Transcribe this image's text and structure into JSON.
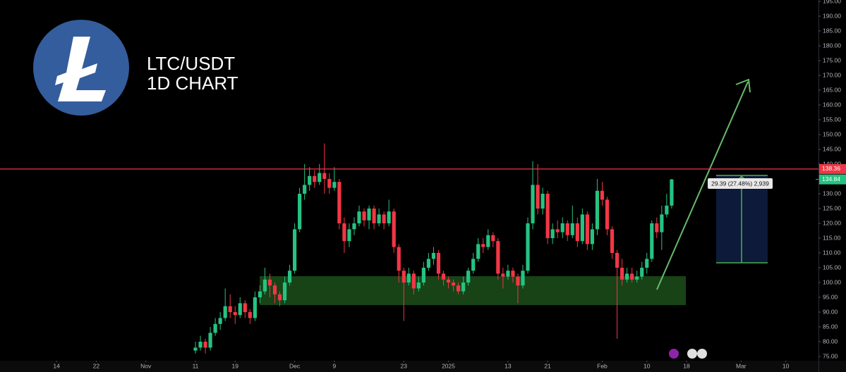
{
  "chart_data": {
    "type": "candlestick",
    "title": "LTC/USDT",
    "subtitle": "1D CHART",
    "x": [
      28,
      29,
      30,
      31,
      32,
      33,
      34,
      35,
      36,
      37,
      38,
      39,
      40,
      41,
      42,
      43,
      44,
      45,
      46,
      47,
      48,
      49,
      50,
      51,
      52,
      53,
      54,
      55,
      56,
      57,
      58,
      59,
      60,
      61,
      62,
      63,
      64,
      65,
      66,
      67,
      68,
      69,
      70,
      71,
      72,
      73,
      74,
      75,
      76,
      77,
      78,
      79,
      80,
      81,
      82,
      83,
      84,
      85,
      86,
      87,
      88,
      89,
      90,
      91,
      92,
      93,
      94,
      95,
      96,
      97,
      98,
      99,
      100,
      101,
      102,
      103,
      104,
      105,
      106,
      107,
      108,
      109,
      110,
      111,
      112,
      113,
      114,
      115,
      116,
      117,
      118,
      119,
      120,
      121,
      122,
      123,
      124
    ],
    "open": [
      77,
      78,
      80,
      78,
      83,
      86,
      88,
      92,
      90,
      89,
      93,
      90,
      88,
      95,
      97,
      101,
      99,
      96,
      94,
      100,
      104,
      118,
      130,
      133,
      136,
      134,
      137,
      135,
      132,
      134,
      120,
      114,
      118,
      120,
      124,
      121,
      125,
      120,
      123,
      120,
      124,
      112,
      104,
      100,
      103,
      98,
      100,
      105,
      108,
      110,
      103,
      101,
      100,
      99,
      97,
      100,
      104,
      108,
      113,
      112,
      116,
      114,
      103,
      102,
      104,
      102,
      99,
      104,
      120,
      133,
      125,
      130,
      115,
      118,
      117,
      120,
      116,
      120,
      114,
      123,
      113,
      118,
      131,
      128,
      118,
      110,
      105,
      101,
      103,
      101,
      102,
      105,
      108,
      120,
      117,
      123,
      126
    ],
    "high": [
      80,
      82,
      81,
      85,
      88,
      90,
      98,
      96,
      92,
      95,
      94,
      91,
      97,
      99,
      105,
      103,
      100,
      97,
      102,
      106,
      120,
      132,
      140,
      139,
      138,
      140,
      147,
      137,
      139,
      135,
      122,
      120,
      122,
      126,
      125,
      126,
      126,
      125,
      124,
      128,
      125,
      113,
      105,
      105,
      104,
      102,
      107,
      110,
      112,
      111,
      104,
      102,
      101,
      100,
      102,
      105,
      110,
      115,
      115,
      118,
      117,
      115,
      105,
      106,
      105,
      103,
      106,
      122,
      141,
      140,
      132,
      131,
      120,
      121,
      122,
      121,
      126,
      122,
      125,
      124,
      120,
      135,
      134,
      129,
      119,
      111,
      108,
      105,
      105,
      104,
      107,
      110,
      121,
      122,
      126,
      130,
      135
    ],
    "low": [
      76,
      77,
      76,
      77,
      82,
      84,
      87,
      88,
      86,
      88,
      88,
      86,
      87,
      93,
      96,
      95,
      93,
      92,
      93,
      99,
      103,
      117,
      128,
      131,
      132,
      133,
      130,
      130,
      131,
      118,
      110,
      112,
      116,
      119,
      119,
      118,
      118,
      119,
      118,
      119,
      110,
      100,
      87,
      99,
      96,
      97,
      99,
      104,
      106,
      101,
      99,
      98,
      97,
      96,
      96,
      99,
      103,
      107,
      110,
      111,
      112,
      101,
      98,
      101,
      100,
      93,
      98,
      103,
      118,
      123,
      123,
      113,
      113,
      115,
      115,
      114,
      115,
      112,
      113,
      111,
      111,
      116,
      126,
      116,
      108,
      81,
      99,
      100,
      100,
      100,
      101,
      103,
      107,
      115,
      111,
      122,
      125
    ],
    "close": [
      78,
      80,
      78,
      83,
      86,
      88,
      92,
      90,
      89,
      93,
      90,
      88,
      95,
      97,
      101,
      99,
      96,
      94,
      100,
      104,
      118,
      130,
      133,
      136,
      134,
      137,
      135,
      132,
      134,
      120,
      114,
      118,
      120,
      124,
      121,
      125,
      120,
      123,
      120,
      124,
      112,
      104,
      100,
      103,
      98,
      100,
      105,
      108,
      110,
      103,
      101,
      100,
      99,
      97,
      100,
      104,
      108,
      113,
      112,
      116,
      114,
      103,
      102,
      104,
      102,
      99,
      104,
      120,
      133,
      125,
      130,
      115,
      118,
      117,
      120,
      116,
      120,
      114,
      123,
      113,
      118,
      131,
      128,
      118,
      110,
      105,
      101,
      103,
      101,
      102,
      105,
      108,
      120,
      117,
      123,
      126,
      134.84
    ],
    "up_color": "#26c281",
    "down_color": "#f23645",
    "xlim": [
      -11.4,
      153.6
    ],
    "xticks": [
      {
        "value": 0,
        "label": "14"
      },
      {
        "value": 8,
        "label": "22"
      },
      {
        "value": 18,
        "label": "Nov"
      },
      {
        "value": 28,
        "label": "11"
      },
      {
        "value": 36,
        "label": "19"
      },
      {
        "value": 48,
        "label": "Dec"
      },
      {
        "value": 56,
        "label": "9"
      },
      {
        "value": 70,
        "label": "23"
      },
      {
        "value": 79,
        "label": "2025"
      },
      {
        "value": 91,
        "label": "13"
      },
      {
        "value": 99,
        "label": "21"
      },
      {
        "value": 110,
        "label": "Feb"
      },
      {
        "value": 119,
        "label": "10"
      },
      {
        "value": 127,
        "label": "18"
      },
      {
        "value": 138,
        "label": "Mar"
      },
      {
        "value": 147,
        "label": "10"
      }
    ],
    "ylim": [
      75,
      195
    ],
    "yticks": [
      {
        "value": 75,
        "label": "75.00"
      },
      {
        "value": 80,
        "label": "80.00"
      },
      {
        "value": 85,
        "label": "85.00"
      },
      {
        "value": 90,
        "label": "90.00"
      },
      {
        "value": 95,
        "label": "95.00"
      },
      {
        "value": 100,
        "label": "100.00"
      },
      {
        "value": 105,
        "label": "105.00"
      },
      {
        "value": 110,
        "label": "110.00"
      },
      {
        "value": 115,
        "label": "115.00"
      },
      {
        "value": 120,
        "label": "120.00"
      },
      {
        "value": 125,
        "label": "125.00"
      },
      {
        "value": 130,
        "label": "130.00"
      },
      {
        "value": 135,
        "label": "135.00"
      },
      {
        "value": 140,
        "label": "140.00"
      },
      {
        "value": 145,
        "label": "145.00"
      },
      {
        "value": 150,
        "label": "150.00"
      },
      {
        "value": 155,
        "label": "155.00"
      },
      {
        "value": 160,
        "label": "160.00"
      },
      {
        "value": 165,
        "label": "165.00"
      },
      {
        "value": 170,
        "label": "170.00"
      },
      {
        "value": 175,
        "label": "175.00"
      },
      {
        "value": 180,
        "label": "180.00"
      },
      {
        "value": 185,
        "label": "185.00"
      },
      {
        "value": 190,
        "label": "190.00"
      },
      {
        "value": 195,
        "label": "195.00"
      }
    ],
    "grid": false,
    "price_line": 138.36,
    "price_line_color": "#f23645",
    "last_price": 134.84,
    "measure_label": "29.39 (27.48%) 2,939"
  }
}
